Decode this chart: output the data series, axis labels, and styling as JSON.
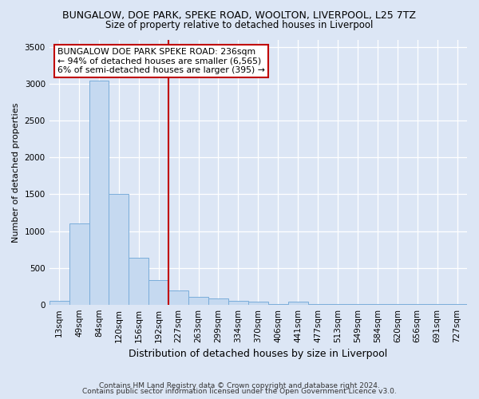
{
  "title1": "BUNGALOW, DOE PARK, SPEKE ROAD, WOOLTON, LIVERPOOL, L25 7TZ",
  "title2": "Size of property relative to detached houses in Liverpool",
  "xlabel": "Distribution of detached houses by size in Liverpool",
  "ylabel": "Number of detached properties",
  "bin_labels": [
    "13sqm",
    "49sqm",
    "84sqm",
    "120sqm",
    "156sqm",
    "192sqm",
    "227sqm",
    "263sqm",
    "299sqm",
    "334sqm",
    "370sqm",
    "406sqm",
    "441sqm",
    "477sqm",
    "513sqm",
    "549sqm",
    "584sqm",
    "620sqm",
    "656sqm",
    "691sqm",
    "727sqm"
  ],
  "bar_heights": [
    50,
    1100,
    3050,
    1510,
    640,
    330,
    190,
    100,
    85,
    50,
    40,
    5,
    35,
    5,
    5,
    5,
    5,
    5,
    5,
    5,
    5
  ],
  "bar_color": "#c5d9f0",
  "bar_edge_color": "#7aadda",
  "vline_x_idx": 6,
  "vline_color": "#c00000",
  "annotation_text": "BUNGALOW DOE PARK SPEKE ROAD: 236sqm\n← 94% of detached houses are smaller (6,565)\n6% of semi-detached houses are larger (395) →",
  "annotation_box_facecolor": "#ffffff",
  "annotation_box_edgecolor": "#c00000",
  "ylim": [
    0,
    3600
  ],
  "yticks": [
    0,
    500,
    1000,
    1500,
    2000,
    2500,
    3000,
    3500
  ],
  "footer1": "Contains HM Land Registry data © Crown copyright and database right 2024.",
  "footer2": "Contains public sector information licensed under the Open Government Licence v3.0.",
  "bg_color": "#dce6f5",
  "plot_bg_color": "#dce6f5",
  "grid_color": "#ffffff",
  "title1_fontsize": 9,
  "title2_fontsize": 8.5,
  "ylabel_fontsize": 8,
  "xlabel_fontsize": 9,
  "tick_fontsize": 7.5,
  "footer_fontsize": 6.5,
  "annotation_fontsize": 7.8
}
